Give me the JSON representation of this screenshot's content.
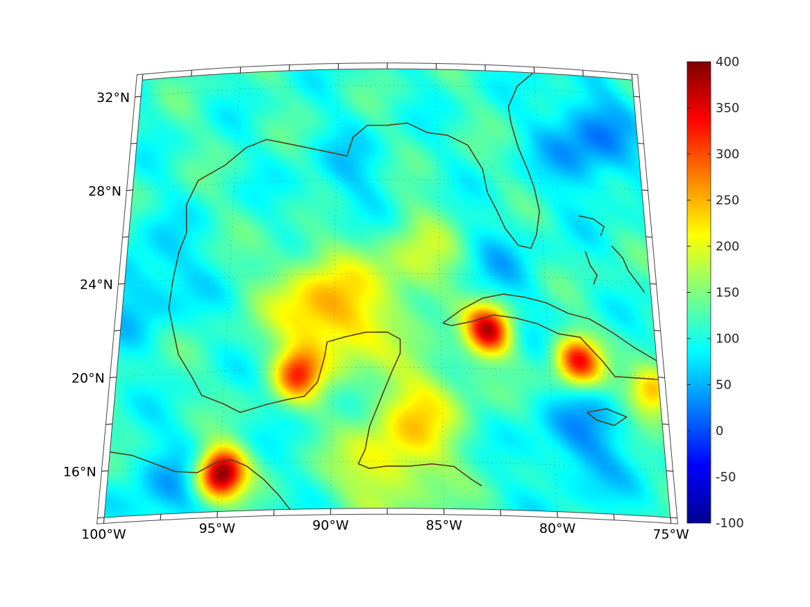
{
  "map": {
    "lat_labels": [
      {
        "lat": 32,
        "label": "32°N"
      },
      {
        "lat": 28,
        "label": "28°N"
      },
      {
        "lat": 24,
        "label": "24°N"
      },
      {
        "lat": 20,
        "label": "20°N"
      },
      {
        "lat": 16,
        "label": "16°N"
      }
    ],
    "lon_labels": [
      {
        "lon": -100,
        "label": "100°W"
      },
      {
        "lon": -95,
        "label": "95°W"
      },
      {
        "lon": -90,
        "label": "90°W"
      },
      {
        "lon": -85,
        "label": "85°W"
      },
      {
        "lon": -80,
        "label": "80°W"
      },
      {
        "lon": -75,
        "label": "75°W"
      }
    ],
    "extent": {
      "lon_min": -100,
      "lon_max": -75,
      "lat_min": 14,
      "lat_max": 32.7
    },
    "projection": "conic",
    "graticule": "dotted",
    "coastline_color": "#5a3a16"
  },
  "colorbar": {
    "min": -100,
    "max": 400,
    "colormap": "jet",
    "ticks": [
      {
        "value": 400,
        "label": "400"
      },
      {
        "value": 350,
        "label": "350"
      },
      {
        "value": 300,
        "label": "300"
      },
      {
        "value": 250,
        "label": "250"
      },
      {
        "value": 200,
        "label": "200"
      },
      {
        "value": 150,
        "label": "150"
      },
      {
        "value": 100,
        "label": "100"
      },
      {
        "value": 50,
        "label": "50"
      },
      {
        "value": 0,
        "label": "0"
      },
      {
        "value": -50,
        "label": "-50"
      },
      {
        "value": -100,
        "label": "-100"
      }
    ]
  },
  "field": {
    "background_value": 110,
    "features": [
      {
        "name": "peak-tehuantepec",
        "lon": -95.0,
        "lat": 15.7,
        "value": 410
      },
      {
        "name": "peak-central-cuba",
        "lon": -82.8,
        "lat": 21.7,
        "value": 360
      },
      {
        "name": "peak-eastern-cuba",
        "lon": -78.7,
        "lat": 20.5,
        "value": 330
      },
      {
        "name": "peak-western-gulf",
        "lon": -91.7,
        "lat": 19.8,
        "value": 270
      },
      {
        "name": "peak-haiti",
        "lon": -75.3,
        "lat": 19.5,
        "value": 270
      },
      {
        "name": "high-central-gulf",
        "lon": -91.0,
        "lat": 23.0,
        "value": 205
      },
      {
        "name": "high-south-gulf",
        "lon": -89.5,
        "lat": 21.5,
        "value": 215
      },
      {
        "name": "high-east-gulf",
        "lon": -86.0,
        "lat": 24.5,
        "value": 185
      },
      {
        "name": "high-nw-caribbean",
        "lon": -86.0,
        "lat": 18.5,
        "value": 195
      },
      {
        "name": "high-honduras",
        "lon": -87.5,
        "lat": 15.8,
        "value": 205
      },
      {
        "name": "low-sw-atlantic",
        "lon": -77.5,
        "lat": 30.0,
        "value": 25
      },
      {
        "name": "low-jamaica-south",
        "lon": -78.8,
        "lat": 17.1,
        "value": 45
      },
      {
        "name": "low-mexico-plateau",
        "lon": -99.0,
        "lat": 24.0,
        "value": 55
      },
      {
        "name": "low-pacific",
        "lon": -97.5,
        "lat": 15.0,
        "value": 60
      },
      {
        "name": "low-loop-current",
        "lon": -82.5,
        "lat": 24.3,
        "value": 70
      },
      {
        "name": "low-north-gulf",
        "lon": -89.5,
        "lat": 28.0,
        "value": 75
      },
      {
        "name": "low-yucatan",
        "lon": -88.7,
        "lat": 20.3,
        "value": 80
      }
    ]
  }
}
